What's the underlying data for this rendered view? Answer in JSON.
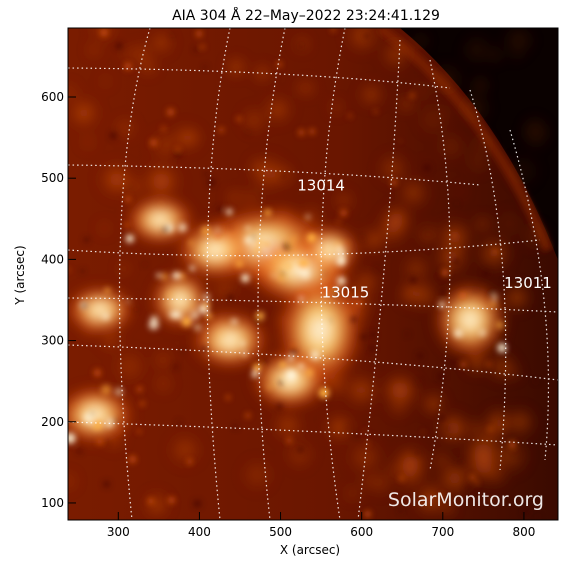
{
  "title": "AIA 304 Å 22–May–2022 23:24:41.129",
  "xlabel": "X (arcsec)",
  "ylabel": "Y (arcsec)",
  "x_ticks": [
    "300",
    "400",
    "500",
    "600",
    "700",
    "800"
  ],
  "y_ticks": [
    "100",
    "200",
    "300",
    "400",
    "500",
    "600"
  ],
  "xlim": [
    238,
    842
  ],
  "ylim": [
    79,
    685
  ],
  "watermark": "SolarMonitor.org",
  "regions": [
    {
      "label": "13014",
      "x": 550,
      "y": 485
    },
    {
      "label": "13015",
      "x": 580,
      "y": 353
    },
    {
      "label": "13011",
      "x": 805,
      "y": 365
    }
  ],
  "colors": {
    "sun_dark": "#2a0600",
    "sun_mid": "#b83000",
    "sun_bright": "#ff9a30",
    "sun_white": "#fff6e0",
    "grid": "#ffffff"
  }
}
